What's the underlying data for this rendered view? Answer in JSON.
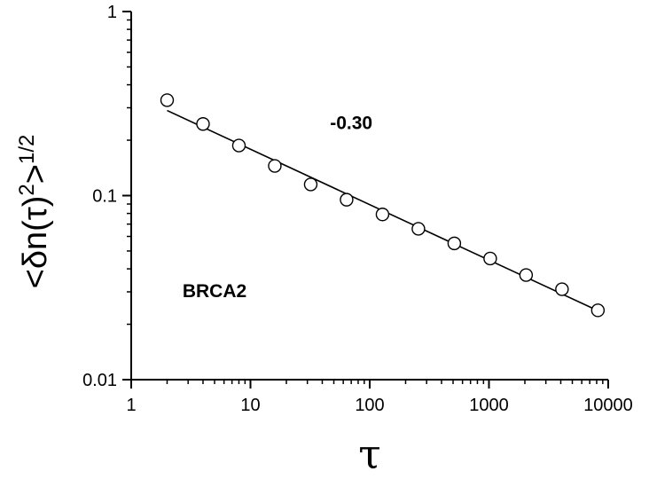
{
  "chart_data": {
    "type": "scatter",
    "xscale": "log",
    "yscale": "log",
    "xlim": [
      1,
      10000
    ],
    "ylim": [
      0.01,
      1
    ],
    "xticks": [
      1,
      10,
      100,
      1000,
      10000
    ],
    "xtick_labels": [
      "1",
      "10",
      "100",
      "1000",
      "10000"
    ],
    "yticks": [
      0.01,
      0.1,
      1
    ],
    "ytick_labels": [
      "0.01",
      "0.1",
      "1"
    ],
    "xlabel": "τ",
    "ylabel": "<δn(τ)²>^1/2",
    "grid": false,
    "series": [
      {
        "marker": "open-circle",
        "x": [
          2,
          4,
          8,
          16,
          32,
          64,
          128,
          256,
          512,
          1024,
          2048,
          4096,
          8192
        ],
        "y": [
          0.33,
          0.245,
          0.187,
          0.145,
          0.115,
          0.095,
          0.079,
          0.066,
          0.055,
          0.0455,
          0.037,
          0.031,
          0.0238
        ]
      }
    ],
    "fit_line": {
      "x": [
        2,
        8192
      ],
      "y": [
        0.29,
        0.0237
      ]
    },
    "annotations": [
      {
        "text": "-0.30",
        "x": 70,
        "y": 0.23
      },
      {
        "text": "BRCA2",
        "x": 5,
        "y": 0.028
      }
    ]
  }
}
